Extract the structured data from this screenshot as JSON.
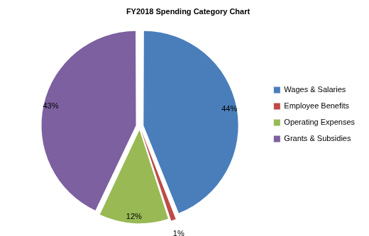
{
  "chart_data": {
    "type": "pie",
    "title": "FY2018 Spending Category Chart",
    "categories": [
      "Wages & Salaries",
      "Employee Benefits",
      "Operating Expenses",
      "Grants & Subsidies"
    ],
    "values": [
      44,
      1,
      12,
      43
    ],
    "value_labels": [
      "44%",
      "1%",
      "12%",
      "43%"
    ],
    "colors": [
      "#4a7ebb",
      "#be4b48",
      "#98b954",
      "#7d60a0"
    ],
    "legend": "right",
    "data_labels": true
  }
}
